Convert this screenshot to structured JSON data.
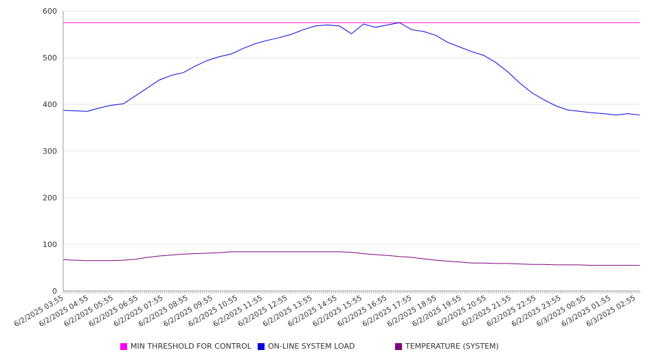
{
  "chart_data": {
    "type": "line",
    "title": "",
    "xlabel": "",
    "ylabel": "",
    "ylim": [
      0,
      600
    ],
    "yticks": [
      0,
      100,
      200,
      300,
      400,
      500,
      600
    ],
    "grid": true,
    "legend_position": "bottom",
    "x_tick_labels": [
      "6/2/2025 03:55",
      "6/2/2025 04:55",
      "6/2/2025 05:55",
      "6/2/2025 06:55",
      "6/2/2025 07:55",
      "6/2/2025 08:55",
      "6/2/2025 09:55",
      "6/2/2025 10:55",
      "6/2/2025 11:55",
      "6/2/2025 12:55",
      "6/2/2025 13:55",
      "6/2/2025 14:55",
      "6/2/2025 15:55",
      "6/2/2025 16:55",
      "6/2/2025 17:55",
      "6/2/2025 18:55",
      "6/2/2025 19:55",
      "6/2/2025 20:55",
      "6/2/2025 21:55",
      "6/2/2025 22:55",
      "6/2/2025 23:55",
      "6/3/2025 00:55",
      "6/3/2025 01:55",
      "6/3/2025 02:55"
    ],
    "x": [
      "6/2/2025 03:55",
      "6/2/2025 04:25",
      "6/2/2025 04:55",
      "6/2/2025 05:25",
      "6/2/2025 05:55",
      "6/2/2025 06:25",
      "6/2/2025 06:55",
      "6/2/2025 07:25",
      "6/2/2025 07:55",
      "6/2/2025 08:25",
      "6/2/2025 08:55",
      "6/2/2025 09:25",
      "6/2/2025 09:55",
      "6/2/2025 10:25",
      "6/2/2025 10:55",
      "6/2/2025 11:25",
      "6/2/2025 11:55",
      "6/2/2025 12:25",
      "6/2/2025 12:55",
      "6/2/2025 13:25",
      "6/2/2025 13:55",
      "6/2/2025 14:25",
      "6/2/2025 14:55",
      "6/2/2025 15:25",
      "6/2/2025 15:55",
      "6/2/2025 16:25",
      "6/2/2025 16:55",
      "6/2/2025 17:25",
      "6/2/2025 17:55",
      "6/2/2025 18:25",
      "6/2/2025 18:55",
      "6/2/2025 19:25",
      "6/2/2025 19:55",
      "6/2/2025 20:25",
      "6/2/2025 20:55",
      "6/2/2025 21:25",
      "6/2/2025 21:55",
      "6/2/2025 22:25",
      "6/2/2025 22:55",
      "6/2/2025 23:25",
      "6/2/2025 23:55",
      "6/3/2025 00:25",
      "6/3/2025 00:55",
      "6/3/2025 01:25",
      "6/3/2025 01:55",
      "6/3/2025 02:25",
      "6/3/2025 02:55",
      "6/3/2025 03:25",
      "6/3/2025 03:50"
    ],
    "series": [
      {
        "name": "MIN THRESHOLD FOR CONTROL",
        "color": "#ff00ff",
        "values": [
          575,
          575,
          575,
          575,
          575,
          575,
          575,
          575,
          575,
          575,
          575,
          575,
          575,
          575,
          575,
          575,
          575,
          575,
          575,
          575,
          575,
          575,
          575,
          575,
          575,
          575,
          575,
          575,
          575,
          575,
          575,
          575,
          575,
          575,
          575,
          575,
          575,
          575,
          575,
          575,
          575,
          575,
          575,
          575,
          575,
          575,
          575,
          575,
          575
        ]
      },
      {
        "name": "ON-LINE SYSTEM LOAD",
        "color": "#0000dd",
        "values": [
          387,
          386,
          385,
          392,
          398,
          401,
          418,
          435,
          452,
          462,
          468,
          482,
          494,
          502,
          508,
          520,
          530,
          537,
          543,
          550,
          560,
          568,
          570,
          568,
          551,
          572,
          565,
          570,
          575,
          560,
          556,
          548,
          533,
          523,
          513,
          505,
          490,
          470,
          446,
          425,
          410,
          397,
          388,
          385,
          382,
          380,
          377,
          380,
          377
        ]
      },
      {
        "name": "TEMPERATURE (SYSTEM)",
        "color": "#800080",
        "values": [
          67,
          66,
          65,
          65,
          65,
          66,
          68,
          72,
          75,
          77,
          79,
          80,
          81,
          82,
          84,
          84,
          84,
          84,
          84,
          84,
          84,
          84,
          84,
          84,
          83,
          80,
          78,
          76,
          74,
          72,
          69,
          66,
          64,
          62,
          60,
          60,
          59,
          59,
          58,
          57,
          57,
          56,
          56,
          56,
          55,
          55,
          55,
          55,
          55
        ]
      }
    ]
  }
}
